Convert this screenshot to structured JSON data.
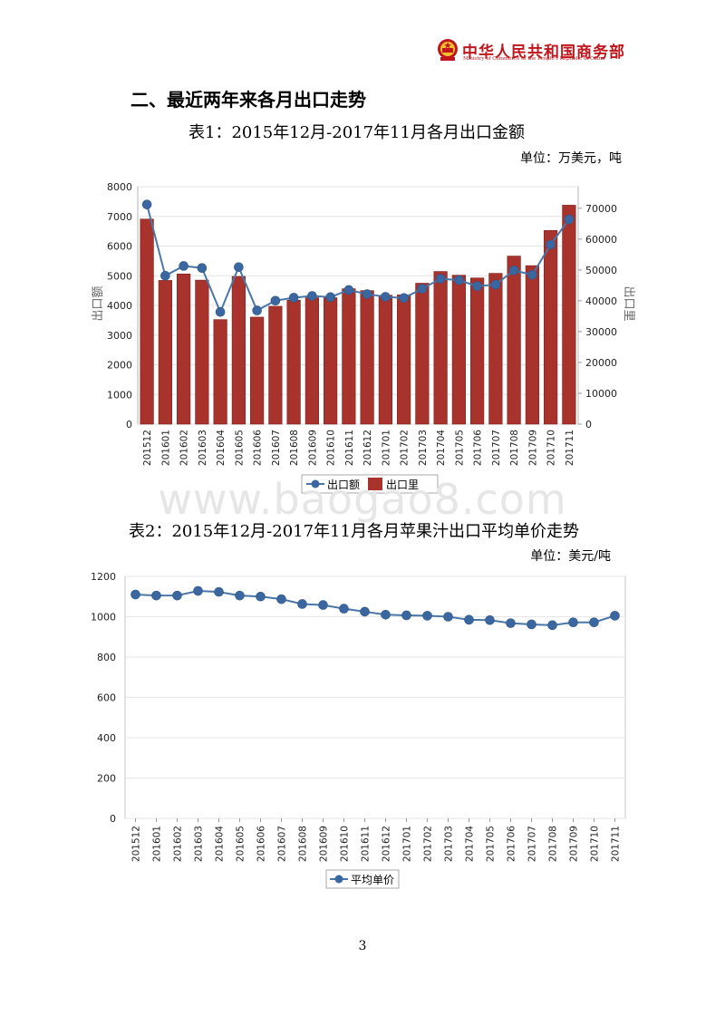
{
  "header": {
    "org_cn": "中华人民共和国商务部",
    "org_en": "Ministry of Commerce of the People's Republic of China"
  },
  "section_heading": "二、最近两年来各月出口走势",
  "watermark": "www.baogao8.com",
  "page_number": "3",
  "colors": {
    "line": "#4a76a8",
    "marker": "#3b67a0",
    "bar": "#a8322c",
    "bar_dark": "#7e1f1b",
    "brand": "#c0161d"
  },
  "chart1": {
    "caption": "表1：2015年12月-2017年11月各月出口金额",
    "unit": "单位：万美元，吨"
  },
  "chart2": {
    "caption": "表2：2015年12月-2017年11月各月苹果汁出口平均单价走势",
    "unit": "单位：美元/吨"
  },
  "chart_data": [
    {
      "type": "bar",
      "categories": [
        "201512",
        "201601",
        "201602",
        "201603",
        "201604",
        "201605",
        "201606",
        "201607",
        "201608",
        "201609",
        "201610",
        "201611",
        "201612",
        "201701",
        "201702",
        "201703",
        "201704",
        "201705",
        "201706",
        "201707",
        "201708",
        "201709",
        "201710",
        "201711"
      ],
      "series": [
        {
          "name": "出口额",
          "type": "line",
          "axis": "left",
          "values": [
            7400,
            5000,
            5330,
            5260,
            3780,
            5290,
            3830,
            4160,
            4260,
            4320,
            4280,
            4520,
            4380,
            4290,
            4250,
            4560,
            4900,
            4850,
            4650,
            4700,
            5180,
            5030,
            6050,
            6900
          ]
        },
        {
          "name": "出口里",
          "type": "bar",
          "axis": "right",
          "values": [
            66500,
            46600,
            48700,
            46700,
            33900,
            47900,
            34700,
            38200,
            40200,
            41000,
            41000,
            43900,
            43300,
            41800,
            41900,
            45700,
            49500,
            48300,
            47400,
            48900,
            54500,
            51400,
            62800,
            71000
          ]
        }
      ],
      "ylabel": "出口额",
      "y2label": "出口里",
      "ylim": [
        0,
        8000
      ],
      "y2lim": [
        0,
        77000
      ],
      "yticks": [
        "0",
        "1000",
        "2000",
        "3000",
        "4000",
        "5000",
        "6000",
        "7000",
        "8000"
      ],
      "y2ticks": [
        "0",
        "10000",
        "20000",
        "30000",
        "40000",
        "50000",
        "60000",
        "70000"
      ],
      "legend": "bottom",
      "grid": true
    },
    {
      "type": "line",
      "categories": [
        "201512",
        "201601",
        "201602",
        "201603",
        "201604",
        "201605",
        "201606",
        "201607",
        "201608",
        "201609",
        "201610",
        "201611",
        "201612",
        "201701",
        "201702",
        "201703",
        "201704",
        "201705",
        "201706",
        "201707",
        "201708",
        "201709",
        "201710",
        "201711"
      ],
      "series": [
        {
          "name": "平均单价",
          "values": [
            1110,
            1105,
            1105,
            1128,
            1123,
            1105,
            1100,
            1087,
            1063,
            1058,
            1040,
            1025,
            1010,
            1007,
            1005,
            1000,
            985,
            983,
            968,
            962,
            958,
            972,
            972,
            1005
          ]
        }
      ],
      "ylim": [
        0,
        1200
      ],
      "yticks": [
        "0",
        "200",
        "400",
        "600",
        "800",
        "1000",
        "1200"
      ],
      "legend": "bottom",
      "grid": true
    }
  ]
}
